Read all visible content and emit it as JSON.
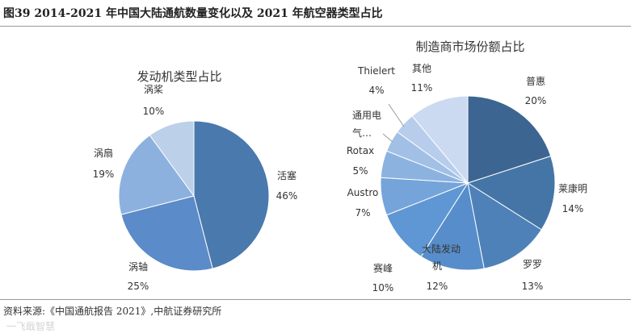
{
  "figure": {
    "title": "图39  2014-2021 年中国大陆通航数量变化以及 2021 年航空器类型占比",
    "source": "资料来源:《中国通航报告 2021》,中航证券研究所",
    "watermark": "一飞戢智慧"
  },
  "chart_data": [
    {
      "type": "pie",
      "title": "发动机类型占比",
      "slices": [
        {
          "label": "活塞",
          "value_label": "46%",
          "value": 46,
          "color": "#4a79ad"
        },
        {
          "label": "涡轴",
          "value_label": "25%",
          "value": 25,
          "color": "#5b8bc8"
        },
        {
          "label": "涡扇",
          "value_label": "19%",
          "value": 19,
          "color": "#8db1de"
        },
        {
          "label": "涡桨",
          "value_label": "10%",
          "value": 10,
          "color": "#bcd0ea"
        }
      ]
    },
    {
      "type": "pie",
      "title": "制造商市场份额占比",
      "slices": [
        {
          "label": "普惠",
          "value_label": "20%",
          "value": 20,
          "color": "#3c6591"
        },
        {
          "label": "莱康明",
          "value_label": "14%",
          "value": 14,
          "color": "#4575a6"
        },
        {
          "label": "罗罗",
          "value_label": "13%",
          "value": 13,
          "color": "#4e81b8"
        },
        {
          "label": "大陆发动机",
          "value_label": "12%",
          "value": 12,
          "color": "#578dca"
        },
        {
          "label": "赛峰",
          "value_label": "10%",
          "value": 10,
          "color": "#5e97d3"
        },
        {
          "label": "Austro",
          "value_label": "7%",
          "value": 7,
          "color": "#75a4da"
        },
        {
          "label": "Rotax",
          "value_label": "5%",
          "value": 5,
          "color": "#8cb2e0"
        },
        {
          "label": "通用电气…",
          "value_label": "",
          "value": 4,
          "color": "#a2c0e6"
        },
        {
          "label": "Thielert",
          "value_label": "4%",
          "value": 4,
          "color": "#b7cdeb"
        },
        {
          "label": "其他",
          "value_label": "11%",
          "value": 11,
          "color": "#cbdaf0"
        }
      ]
    }
  ]
}
